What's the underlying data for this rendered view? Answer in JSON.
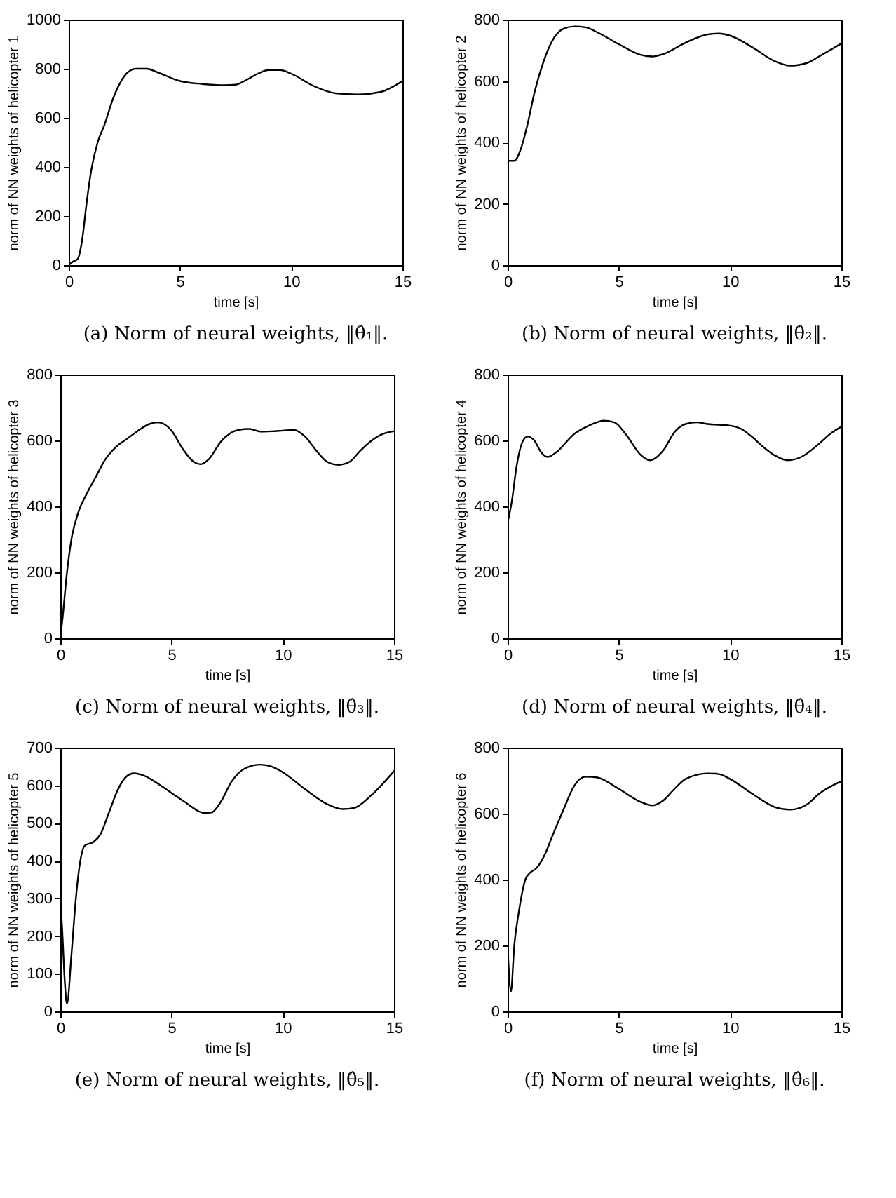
{
  "chart_data": [
    {
      "type": "line",
      "title": "(a) Norm of neural weights, ‖θ̂₁‖.",
      "xlabel": "time [s]",
      "ylabel": "norm of NN weights of helicopter 1",
      "color": "#000000",
      "xlim": [
        0,
        15
      ],
      "xticks": [
        0,
        5,
        10,
        15
      ],
      "ylim": [
        0,
        1000
      ],
      "yticks": [
        0,
        200,
        400,
        600,
        800,
        1000
      ],
      "x": [
        0,
        0.2,
        0.4,
        0.6,
        0.8,
        1.0,
        1.3,
        1.6,
        2.0,
        2.5,
        3.0,
        3.5,
        4,
        5,
        6,
        7,
        7.5,
        8,
        8.5,
        9,
        9.5,
        10,
        11,
        12,
        13,
        14,
        15
      ],
      "values": [
        0,
        15,
        25,
        100,
        250,
        380,
        500,
        570,
        680,
        770,
        800,
        800,
        785,
        750,
        738,
        733,
        735,
        755,
        780,
        795,
        795,
        780,
        730,
        700,
        695,
        705,
        750
      ]
    },
    {
      "type": "line",
      "title": "(b) Norm of neural weights, ‖θ̂₂‖.",
      "xlabel": "time [s]",
      "ylabel": "norm of NN weights of helicopter 2",
      "color": "#000000",
      "xlim": [
        0,
        15
      ],
      "xticks": [
        0,
        5,
        10,
        15
      ],
      "ylim": [
        0,
        800
      ],
      "yticks": [
        0,
        200,
        400,
        600,
        800
      ],
      "x": [
        0,
        0.3,
        0.6,
        0.9,
        1.2,
        1.6,
        2,
        2.5,
        3,
        3.5,
        4,
        5,
        6,
        6.5,
        7,
        8,
        9,
        9.5,
        10,
        11,
        12,
        12.7,
        13.5,
        14,
        15
      ],
      "values": [
        340,
        340,
        380,
        460,
        560,
        660,
        730,
        770,
        778,
        775,
        760,
        720,
        685,
        680,
        688,
        725,
        752,
        755,
        748,
        710,
        665,
        650,
        660,
        680,
        722
      ]
    },
    {
      "type": "line",
      "title": "(c) Norm of neural weights, ‖θ̂₃‖.",
      "xlabel": "time [s]",
      "ylabel": "norm of NN weights of helicopter 3",
      "color": "#000000",
      "xlim": [
        0,
        15
      ],
      "xticks": [
        0,
        5,
        10,
        15
      ],
      "ylim": [
        0,
        800
      ],
      "yticks": [
        0,
        200,
        400,
        600,
        800
      ],
      "x": [
        0,
        0.1,
        0.3,
        0.5,
        0.8,
        1.2,
        1.6,
        2,
        2.5,
        3,
        3.5,
        4,
        4.4,
        5,
        5.5,
        6,
        6.3,
        6.7,
        7.2,
        8,
        8.5,
        9,
        9.5,
        10,
        10.5,
        11,
        11.5,
        12,
        12.5,
        13,
        13.5,
        14,
        14.5,
        15
      ],
      "values": [
        0,
        60,
        200,
        300,
        380,
        440,
        490,
        540,
        580,
        605,
        630,
        650,
        655,
        630,
        575,
        535,
        528,
        545,
        595,
        632,
        635,
        627,
        628,
        630,
        632,
        612,
        570,
        535,
        526,
        535,
        570,
        600,
        620,
        628
      ]
    },
    {
      "type": "line",
      "title": "(d) Norm of neural weights, ‖θ̂₄‖.",
      "xlabel": "time [s]",
      "ylabel": "norm of NN weights of helicopter 4",
      "color": "#000000",
      "xlim": [
        0,
        15
      ],
      "xticks": [
        0,
        5,
        10,
        15
      ],
      "ylim": [
        0,
        800
      ],
      "yticks": [
        0,
        200,
        400,
        600,
        800
      ],
      "x": [
        0,
        0.2,
        0.4,
        0.7,
        0.9,
        1.2,
        1.5,
        1.8,
        2.2,
        3,
        3.5,
        4,
        4.3,
        4.8,
        5.3,
        6,
        6.4,
        7,
        7.5,
        8,
        8.5,
        9,
        10,
        10.5,
        11,
        11.5,
        12,
        12.6,
        13.2,
        14,
        14.5,
        15
      ],
      "values": [
        350,
        420,
        520,
        600,
        612,
        600,
        565,
        550,
        565,
        620,
        640,
        655,
        660,
        655,
        620,
        555,
        540,
        570,
        625,
        650,
        655,
        650,
        645,
        635,
        610,
        580,
        555,
        540,
        550,
        590,
        620,
        642
      ]
    },
    {
      "type": "line",
      "title": "(e) Norm of neural weights, ‖θ̂₅‖.",
      "xlabel": "time [s]",
      "ylabel": "norm of NN weights of helicopter 5",
      "color": "#000000",
      "xlim": [
        0,
        15
      ],
      "xticks": [
        0,
        5,
        10,
        15
      ],
      "ylim": [
        0,
        700
      ],
      "yticks": [
        0,
        100,
        200,
        300,
        400,
        500,
        600,
        700
      ],
      "x": [
        0,
        0.1,
        0.2,
        0.3,
        0.5,
        0.7,
        0.9,
        1.1,
        1.5,
        1.8,
        2.2,
        2.6,
        3,
        3.3,
        3.8,
        4.5,
        5.5,
        6.5,
        6.8,
        7.2,
        7.7,
        8.3,
        9,
        9.5,
        10,
        11,
        12,
        12.7,
        13.2,
        14,
        15
      ],
      "values": [
        310,
        200,
        80,
        20,
        150,
        300,
        400,
        440,
        450,
        470,
        530,
        590,
        625,
        632,
        625,
        600,
        560,
        527,
        528,
        555,
        610,
        645,
        655,
        650,
        635,
        590,
        550,
        537,
        540,
        575,
        638
      ]
    },
    {
      "type": "line",
      "title": "(f) Norm of neural weights, ‖θ̂₆‖.",
      "xlabel": "time [s]",
      "ylabel": "norm of NN weights of helicopter 6",
      "color": "#000000",
      "xlim": [
        0,
        15
      ],
      "xticks": [
        0,
        5,
        10,
        15
      ],
      "ylim": [
        0,
        800
      ],
      "yticks": [
        0,
        200,
        400,
        600,
        800
      ],
      "x": [
        0,
        0.15,
        0.3,
        0.5,
        0.8,
        1,
        1.3,
        1.7,
        2,
        2.5,
        3,
        3.5,
        4,
        5,
        6,
        6.5,
        7,
        7.5,
        8,
        9,
        9.5,
        10,
        11,
        12,
        12.7,
        13.5,
        14,
        15
      ],
      "values": [
        200,
        60,
        200,
        300,
        400,
        420,
        435,
        480,
        530,
        610,
        685,
        712,
        710,
        675,
        635,
        625,
        640,
        675,
        705,
        722,
        720,
        705,
        660,
        620,
        612,
        630,
        660,
        698
      ]
    }
  ]
}
